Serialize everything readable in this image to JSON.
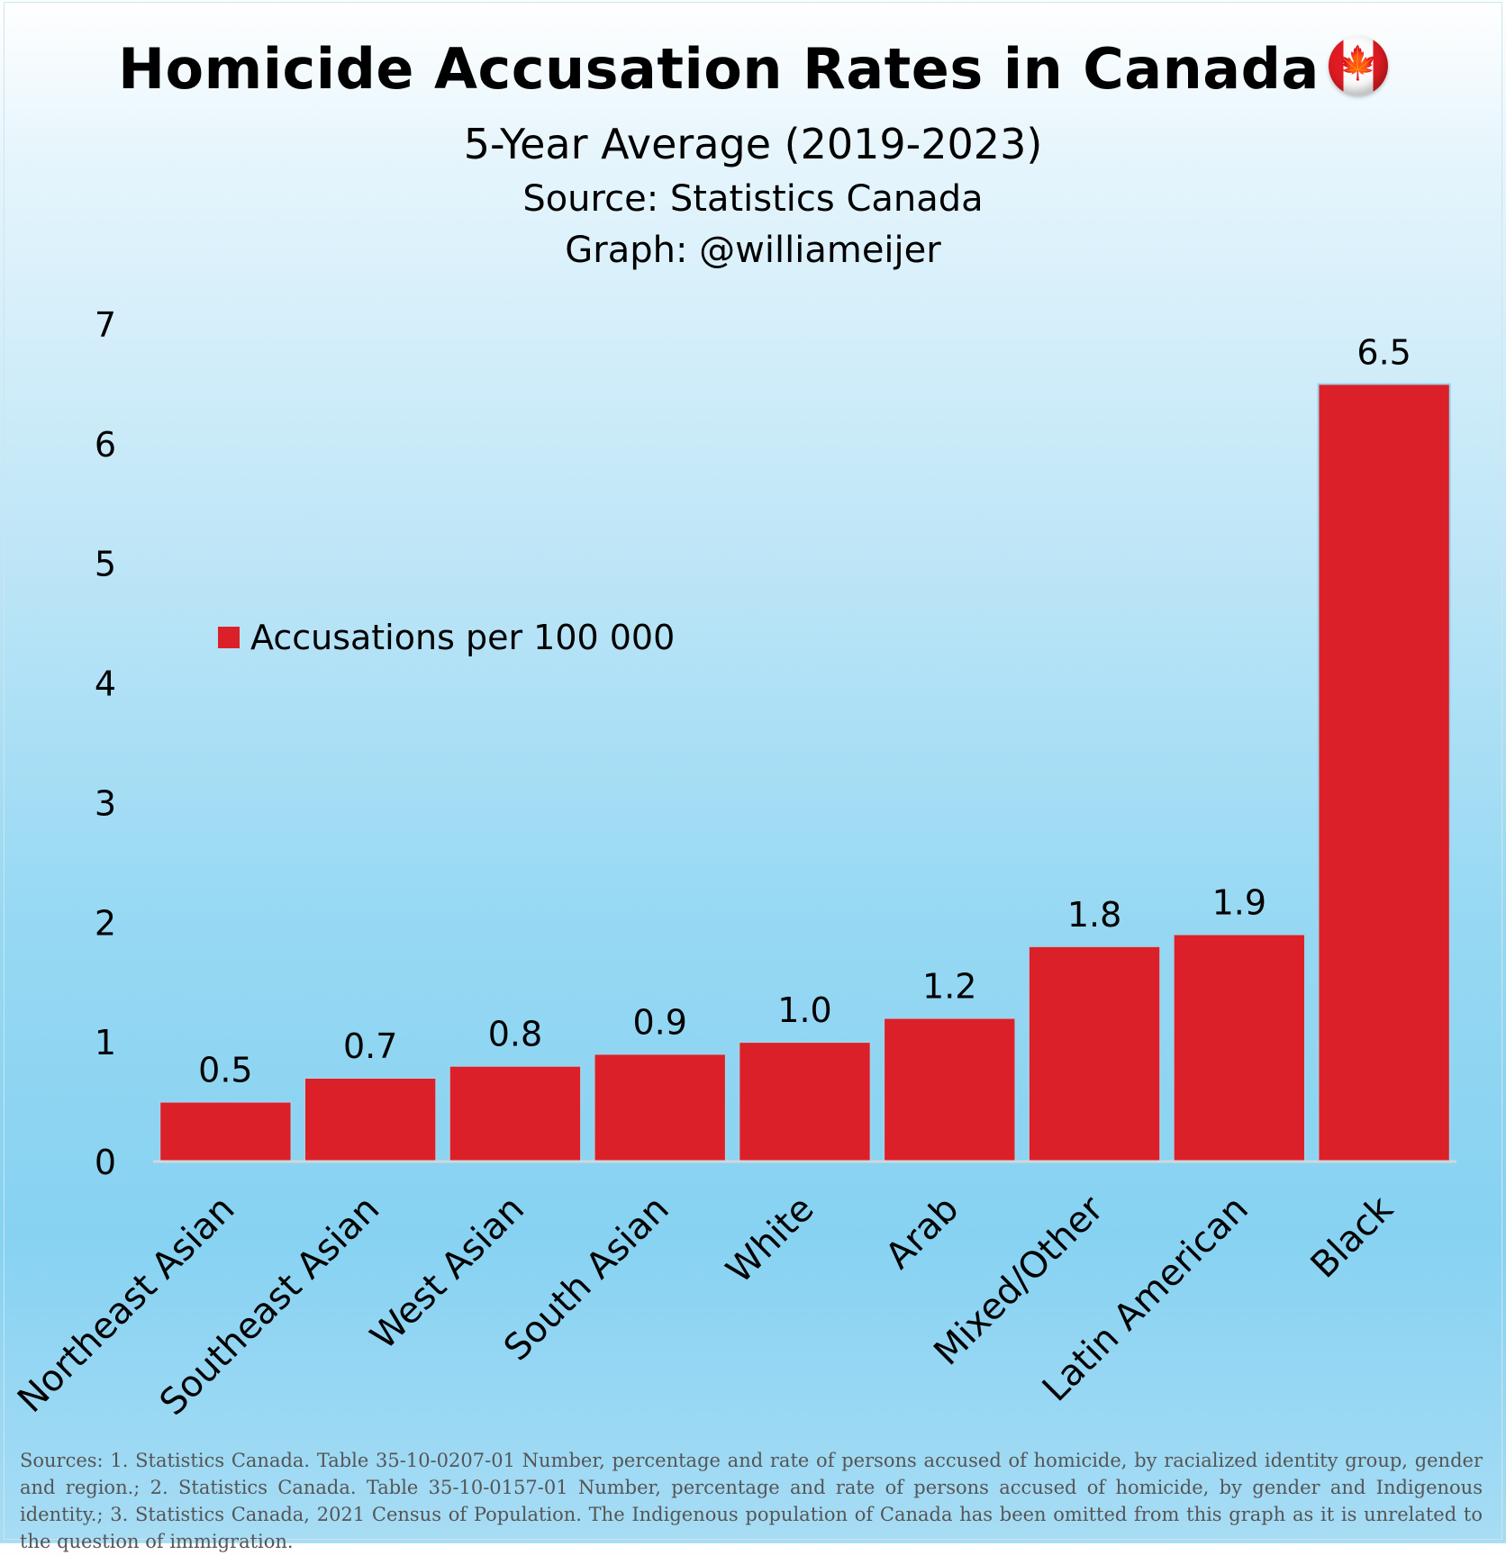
{
  "header": {
    "title": "Homicide Accusation Rates in Canada",
    "flag_symbol": "🍁",
    "subtitle": "5-Year Average (2019-2023)",
    "source": "Source: Statistics Canada",
    "credit": "Graph: @williameijer"
  },
  "legend": {
    "label": "Accusations per 100 000"
  },
  "footnote": "Sources: 1. Statistics Canada. Table 35-10-0207-01  Number, percentage and rate of persons accused of homicide, by racialized identity group, gender and region.; 2. Statistics Canada. Table 35-10-0157-01  Number, percentage and rate of persons accused of homicide, by gender and Indigenous identity.; 3. Statistics Canada, 2021 Census of Population. The Indigenous population of Canada has been omitted from this graph as it is unrelated to the question of immigration.",
  "chart_data": {
    "type": "bar",
    "title": "Homicide Accusation Rates in Canada",
    "subtitle": "5-Year Average (2019-2023)",
    "categories": [
      "Northeast Asian",
      "Southeast Asian",
      "West Asian",
      "South Asian",
      "White",
      "Arab",
      "Mixed/Other",
      "Latin American",
      "Black"
    ],
    "series": [
      {
        "name": "Accusations per 100 000",
        "values": [
          0.5,
          0.7,
          0.8,
          0.9,
          1.0,
          1.2,
          1.8,
          1.9,
          6.5
        ]
      }
    ],
    "value_labels": [
      "0.5",
      "0.7",
      "0.8",
      "0.9",
      "1.0",
      "1.2",
      "1.8",
      "1.9",
      "6.5"
    ],
    "yticks": [
      "0",
      "1",
      "2",
      "3",
      "4",
      "5",
      "6",
      "7"
    ],
    "ylim": [
      0,
      7
    ],
    "xlabel": "",
    "ylabel": "",
    "grid": false,
    "legend_position": "left-middle",
    "colors": {
      "bar": "#dc2029",
      "bar_edge": "#b8171f",
      "axis": "#cfd8dc"
    }
  }
}
